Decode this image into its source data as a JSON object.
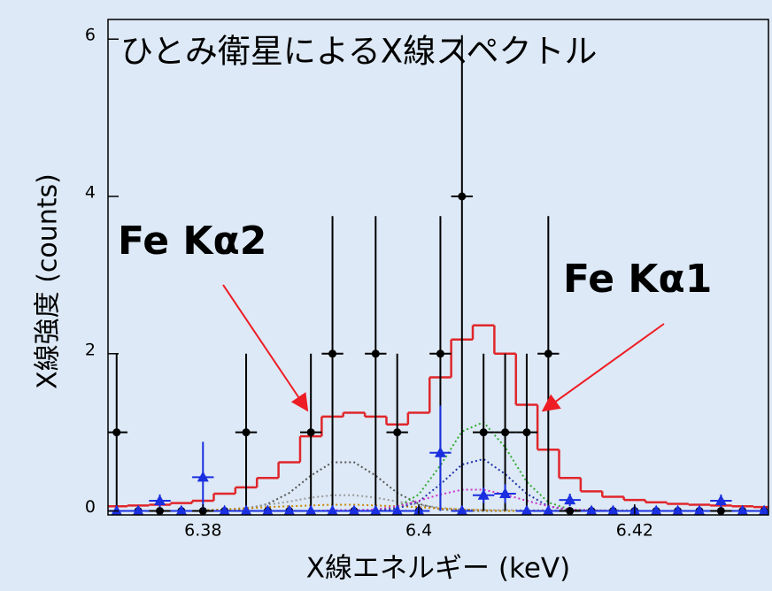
{
  "chart_data": {
    "type": "spectrum",
    "title": "ひとみ衛星によるX線スペクトル",
    "x_label": "X線エネルギー (keV)",
    "y_label": "X線強度 (counts)",
    "xlim": [
      6.3712,
      6.4324
    ],
    "ylim": [
      -0.05,
      6.25
    ],
    "xticks": [
      6.38,
      6.4,
      6.42
    ],
    "yticks": [
      0,
      2,
      4,
      6
    ],
    "x": [
      6.372,
      6.374,
      6.376,
      6.378,
      6.38,
      6.382,
      6.384,
      6.386,
      6.388,
      6.39,
      6.392,
      6.394,
      6.396,
      6.398,
      6.4,
      6.402,
      6.404,
      6.406,
      6.408,
      6.41,
      6.412,
      6.414,
      6.416,
      6.418,
      6.42,
      6.422,
      6.424,
      6.426,
      6.428,
      6.43,
      6.432
    ],
    "series": [
      {
        "style": "step",
        "color": "#e0262b",
        "values": [
          0.06,
          0.07,
          0.08,
          0.1,
          0.13,
          0.22,
          0.3,
          0.42,
          0.62,
          0.95,
          1.2,
          1.25,
          1.2,
          1.1,
          1.25,
          1.7,
          2.18,
          2.36,
          2.0,
          1.35,
          0.78,
          0.42,
          0.25,
          0.18,
          0.14,
          0.11,
          0.09,
          0.08,
          0.07,
          0.06,
          0.05
        ]
      },
      {
        "style": "circle",
        "color": "#000000",
        "values": [
          1,
          0,
          0,
          0,
          0,
          0,
          1,
          0,
          0,
          1,
          2,
          0,
          2,
          1,
          0,
          2,
          4,
          1,
          1,
          1,
          2,
          0,
          0,
          0,
          0,
          0,
          0,
          0,
          0,
          0,
          0
        ],
        "err_plus": [
          1,
          0,
          0,
          0,
          0,
          0,
          1,
          0,
          0,
          1,
          1.75,
          0,
          1.75,
          1,
          0,
          1.75,
          2.05,
          1,
          1,
          1,
          1.75,
          0,
          0,
          0,
          0,
          0,
          0,
          0,
          0,
          0,
          0
        ],
        "err_minus": [
          1,
          0,
          0,
          0,
          0,
          0,
          1,
          0,
          0,
          1,
          2,
          0,
          2,
          1,
          0,
          2,
          4,
          1,
          1,
          1,
          2,
          0,
          0,
          0,
          0,
          0,
          0,
          0,
          0,
          0,
          0
        ]
      },
      {
        "style": "triangle",
        "color": "#1a2fe0",
        "values": [
          0,
          0,
          0.13,
          0,
          0.43,
          0,
          0,
          0,
          0,
          0,
          0,
          0,
          0,
          0,
          0,
          0.74,
          0,
          0.2,
          0.22,
          0,
          0,
          0.14,
          0,
          0,
          0,
          0,
          0,
          0,
          0.13,
          0,
          0
        ],
        "err_plus": [
          0,
          0,
          0.08,
          0,
          0.45,
          0,
          0,
          0,
          0,
          0,
          0,
          0,
          0,
          0,
          0,
          0.6,
          0,
          0.1,
          0.12,
          0,
          0,
          0.08,
          0,
          0,
          0,
          0,
          0,
          0,
          0.08,
          0,
          0
        ],
        "err_minus": [
          0,
          0,
          0.08,
          0,
          0.43,
          0,
          0,
          0,
          0,
          0,
          0,
          0,
          0,
          0,
          0,
          0.74,
          0,
          0.1,
          0.12,
          0,
          0,
          0.08,
          0,
          0,
          0,
          0,
          0,
          0,
          0.08,
          0,
          0
        ]
      }
    ],
    "components": {
      "x": [
        6.38,
        6.382,
        6.384,
        6.386,
        6.388,
        6.39,
        6.392,
        6.394,
        6.396,
        6.398,
        6.4,
        6.402,
        6.404,
        6.406,
        6.408,
        6.41,
        6.412,
        6.414,
        6.416,
        6.418,
        6.42
      ],
      "series": [
        {
          "color": "#555555",
          "values": [
            0,
            0,
            0.02,
            0.09,
            0.23,
            0.45,
            0.62,
            0.62,
            0.45,
            0.23,
            0.09,
            0.02,
            0,
            0,
            0,
            0,
            0,
            0,
            0,
            0,
            0
          ]
        },
        {
          "color": "#9a9a9a",
          "values": [
            0.01,
            0.02,
            0.04,
            0.08,
            0.12,
            0.17,
            0.2,
            0.2,
            0.17,
            0.12,
            0.08,
            0.04,
            0.02,
            0.01,
            0.01,
            0.01,
            0.01,
            0.01,
            0.01,
            0.01,
            0.01
          ]
        },
        {
          "color": "#cc8800",
          "values": [
            0.01,
            0.02,
            0.03,
            0.05,
            0.06,
            0.07,
            0.08,
            0.08,
            0.07,
            0.06,
            0.05,
            0.03,
            0.02,
            0.01,
            0,
            0,
            0,
            0,
            0,
            0,
            0
          ]
        },
        {
          "color": "#33aa33",
          "values": [
            0,
            0,
            0,
            0,
            0,
            0,
            0,
            0,
            0.01,
            0.05,
            0.21,
            0.58,
            1.01,
            1.13,
            0.81,
            0.37,
            0.11,
            0.02,
            0,
            0,
            0
          ]
        },
        {
          "color": "#2233aa",
          "values": [
            0,
            0,
            0,
            0,
            0,
            0,
            0,
            0,
            0,
            0.03,
            0.12,
            0.34,
            0.59,
            0.66,
            0.47,
            0.22,
            0.06,
            0.01,
            0,
            0,
            0
          ]
        },
        {
          "color": "#cc33cc",
          "values": [
            0,
            0,
            0,
            0,
            0,
            0,
            0.01,
            0.01,
            0.02,
            0.06,
            0.13,
            0.21,
            0.27,
            0.27,
            0.21,
            0.13,
            0.06,
            0.02,
            0.01,
            0,
            0
          ]
        }
      ]
    },
    "annotations": [
      {
        "text": "Fe Kα2"
      },
      {
        "text": "Fe Kα1"
      }
    ]
  }
}
